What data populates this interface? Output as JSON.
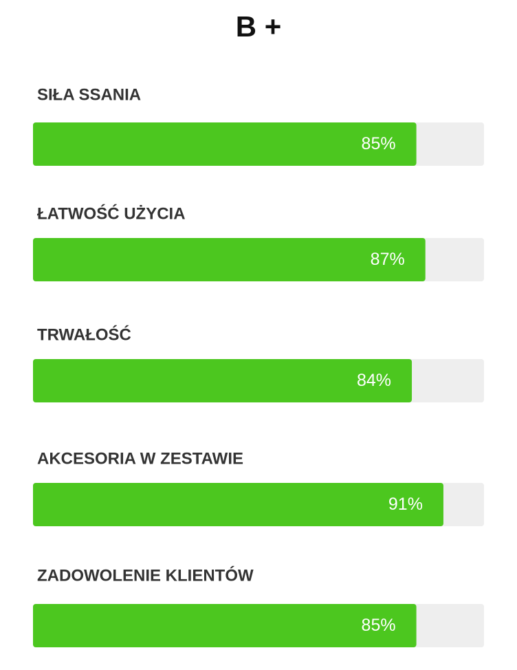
{
  "chart_data": {
    "type": "bar",
    "orientation": "horizontal",
    "title": "B +",
    "categories": [
      "SIŁA SSANIA",
      "ŁATWOŚĆ UŻYCIA",
      "TRWAŁOŚĆ",
      "AKCESORIA W ZESTAWIE",
      "ZADOWOLENIE KLIENTÓW"
    ],
    "values": [
      85,
      87,
      84,
      91,
      85
    ],
    "value_labels": [
      "85%",
      "87%",
      "84%",
      "91%",
      "85%"
    ],
    "xlim": [
      0,
      100
    ],
    "color": "#4cc71f",
    "track_color": "#eeeeee"
  }
}
